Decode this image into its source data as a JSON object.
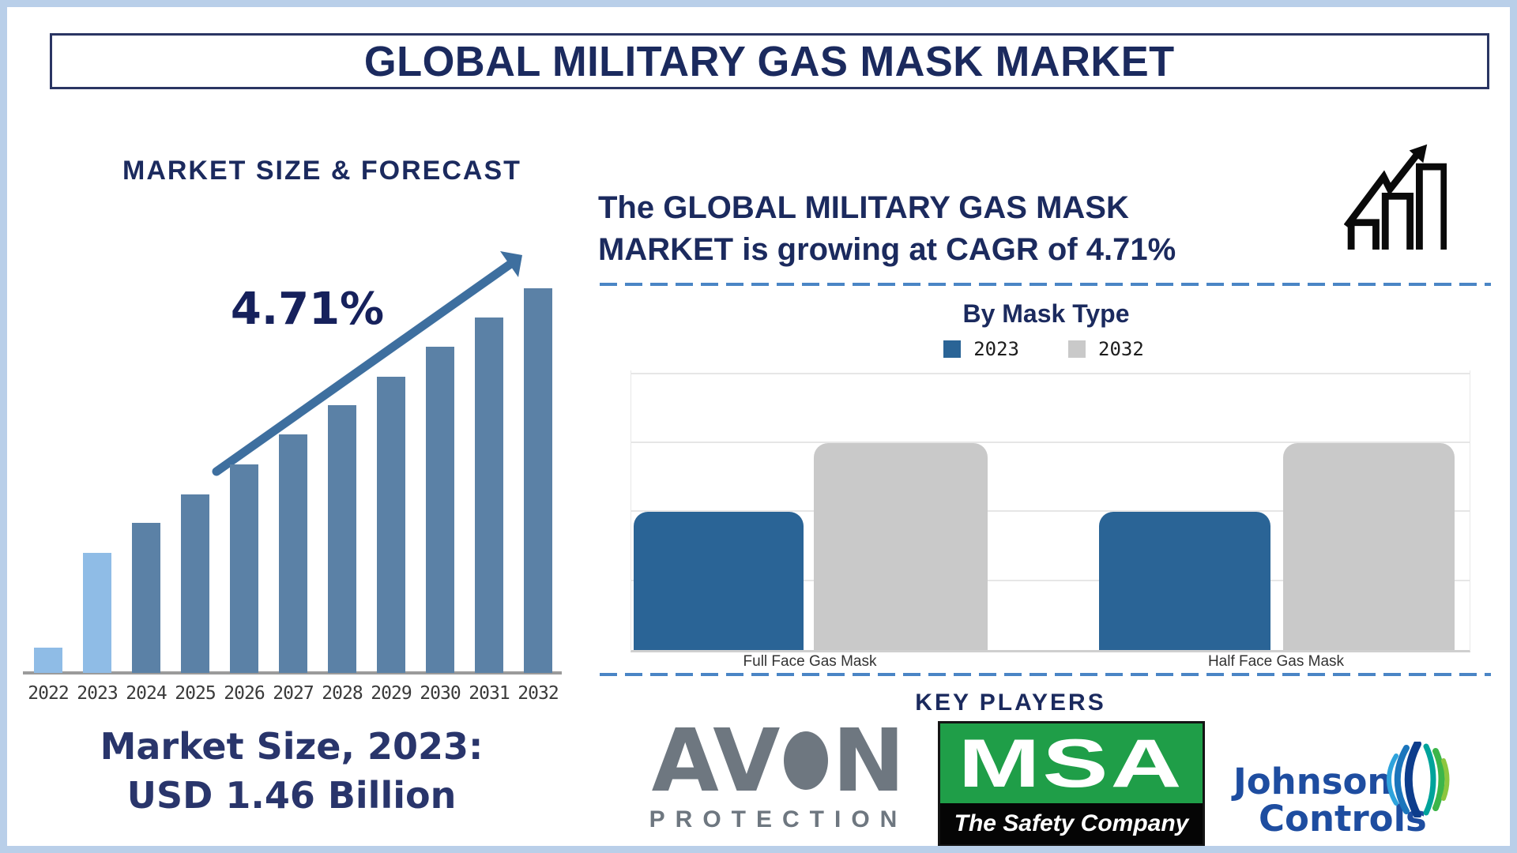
{
  "header": {
    "title": "GLOBAL MILITARY GAS MASK MARKET"
  },
  "left_section": {
    "heading": "MARKET SIZE & FORECAST",
    "cagr_label": "4.71%",
    "caption_line1": "Market Size, 2023:",
    "caption_line2": "USD 1.46 Billion"
  },
  "right_section": {
    "growth_line1": "The GLOBAL MILITARY GAS MASK",
    "growth_line2": "MARKET is growing at CAGR of 4.71%",
    "by_mask_type_title": "By Mask Type",
    "legend": [
      {
        "label": "2023",
        "color": "#2a6496"
      },
      {
        "label": "2032",
        "color": "#c9c9c9"
      }
    ],
    "key_players_title": "KEY PLAYERS"
  },
  "key_players": {
    "avon": {
      "name_left": "AV",
      "name_right": "N",
      "subtitle": "PROTECTION"
    },
    "msa": {
      "name": "MSA",
      "subtitle": "The Safety Company"
    },
    "johnson_controls": {
      "line1": "Johnson",
      "line2": "Controls"
    }
  },
  "chart_data": [
    {
      "type": "bar",
      "title": "MARKET SIZE & FORECAST",
      "categories": [
        "2022",
        "2023",
        "2024",
        "2025",
        "2026",
        "2027",
        "2028",
        "2029",
        "2030",
        "2031",
        "2032"
      ],
      "values_relative_height_pct": [
        6.6,
        31.2,
        39.0,
        46.4,
        54.2,
        62.0,
        69.6,
        77.0,
        84.8,
        92.4,
        100.0
      ],
      "highlight_years": [
        "2022",
        "2023"
      ],
      "annotations": {
        "cagr": "4.71%",
        "market_size_2023": "USD 1.46 Billion"
      },
      "xlabel": "",
      "ylabel": "",
      "y_axis_labels_shown": false,
      "grid": false
    },
    {
      "type": "grouped-bar",
      "title": "By Mask Type",
      "categories": [
        "Full Face Gas Mask",
        "Half Face Gas Mask"
      ],
      "series": [
        {
          "name": "2023",
          "values_relative": [
            2,
            2
          ],
          "color": "#2a6496"
        },
        {
          "name": "2032",
          "values_relative": [
            3,
            3
          ],
          "color": "#c9c9c9"
        }
      ],
      "ylim_relative": [
        0,
        4
      ],
      "y_axis_labels_shown": false,
      "grid": true,
      "legend_position": "top"
    }
  ],
  "colors": {
    "navy_text": "#1b2a5e",
    "slate_bar": "#5b81a6",
    "highlight_bar": "#8fbce6",
    "arrow_blue": "#3e6f9f",
    "dashed_line_blue": "#4a85c5",
    "frame_light_blue": "#b9cfe9",
    "legend_blue": "#2a6496",
    "legend_gray": "#c9c9c9",
    "avon_gray": "#6e7780",
    "msa_green": "#1f9e48",
    "jc_blue": "#1e4da0",
    "growth_icon_black": "#0a0a0a"
  }
}
